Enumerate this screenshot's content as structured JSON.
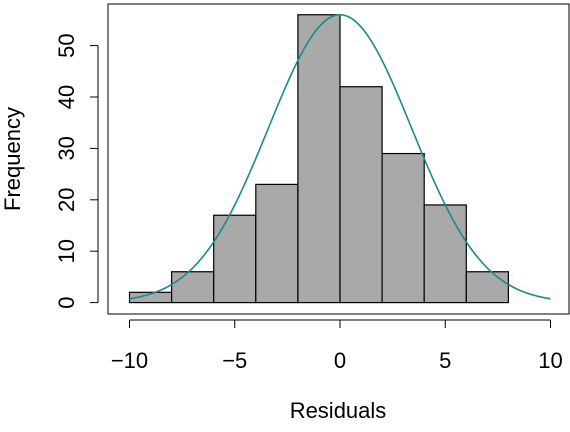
{
  "chart_data": {
    "type": "bar",
    "subtype": "histogram",
    "title": "",
    "xlabel": "Residuals",
    "ylabel": "Frequency",
    "bins": [
      {
        "start": -10,
        "end": -8,
        "count": 2
      },
      {
        "start": -8,
        "end": -6,
        "count": 6
      },
      {
        "start": -6,
        "end": -4,
        "count": 17
      },
      {
        "start": -4,
        "end": -2,
        "count": 23
      },
      {
        "start": -2,
        "end": 0,
        "count": 56
      },
      {
        "start": 0,
        "end": 2,
        "count": 42
      },
      {
        "start": 2,
        "end": 4,
        "count": 29
      },
      {
        "start": 4,
        "end": 6,
        "count": 19
      },
      {
        "start": 6,
        "end": 8,
        "count": 6
      }
    ],
    "xlim": [
      -10.5,
      10.5
    ],
    "ylim": [
      0,
      56
    ],
    "x_ticks": [
      -10,
      -5,
      0,
      5,
      10
    ],
    "x_tick_labels": [
      "−10",
      "−5",
      "0",
      "5",
      "10"
    ],
    "y_ticks": [
      0,
      10,
      20,
      30,
      40,
      50
    ],
    "y_tick_labels": [
      "0",
      "10",
      "20",
      "30",
      "40",
      "50"
    ],
    "overlay_curve": {
      "type": "normal-density",
      "mean": 0,
      "sd": 3.4,
      "peak": 56,
      "x_range": [
        -10,
        10
      ]
    },
    "grid": false,
    "colors": {
      "bar_fill": "#a9a9a9",
      "bar_stroke": "#000000",
      "curve": "#1b8a8f"
    }
  }
}
